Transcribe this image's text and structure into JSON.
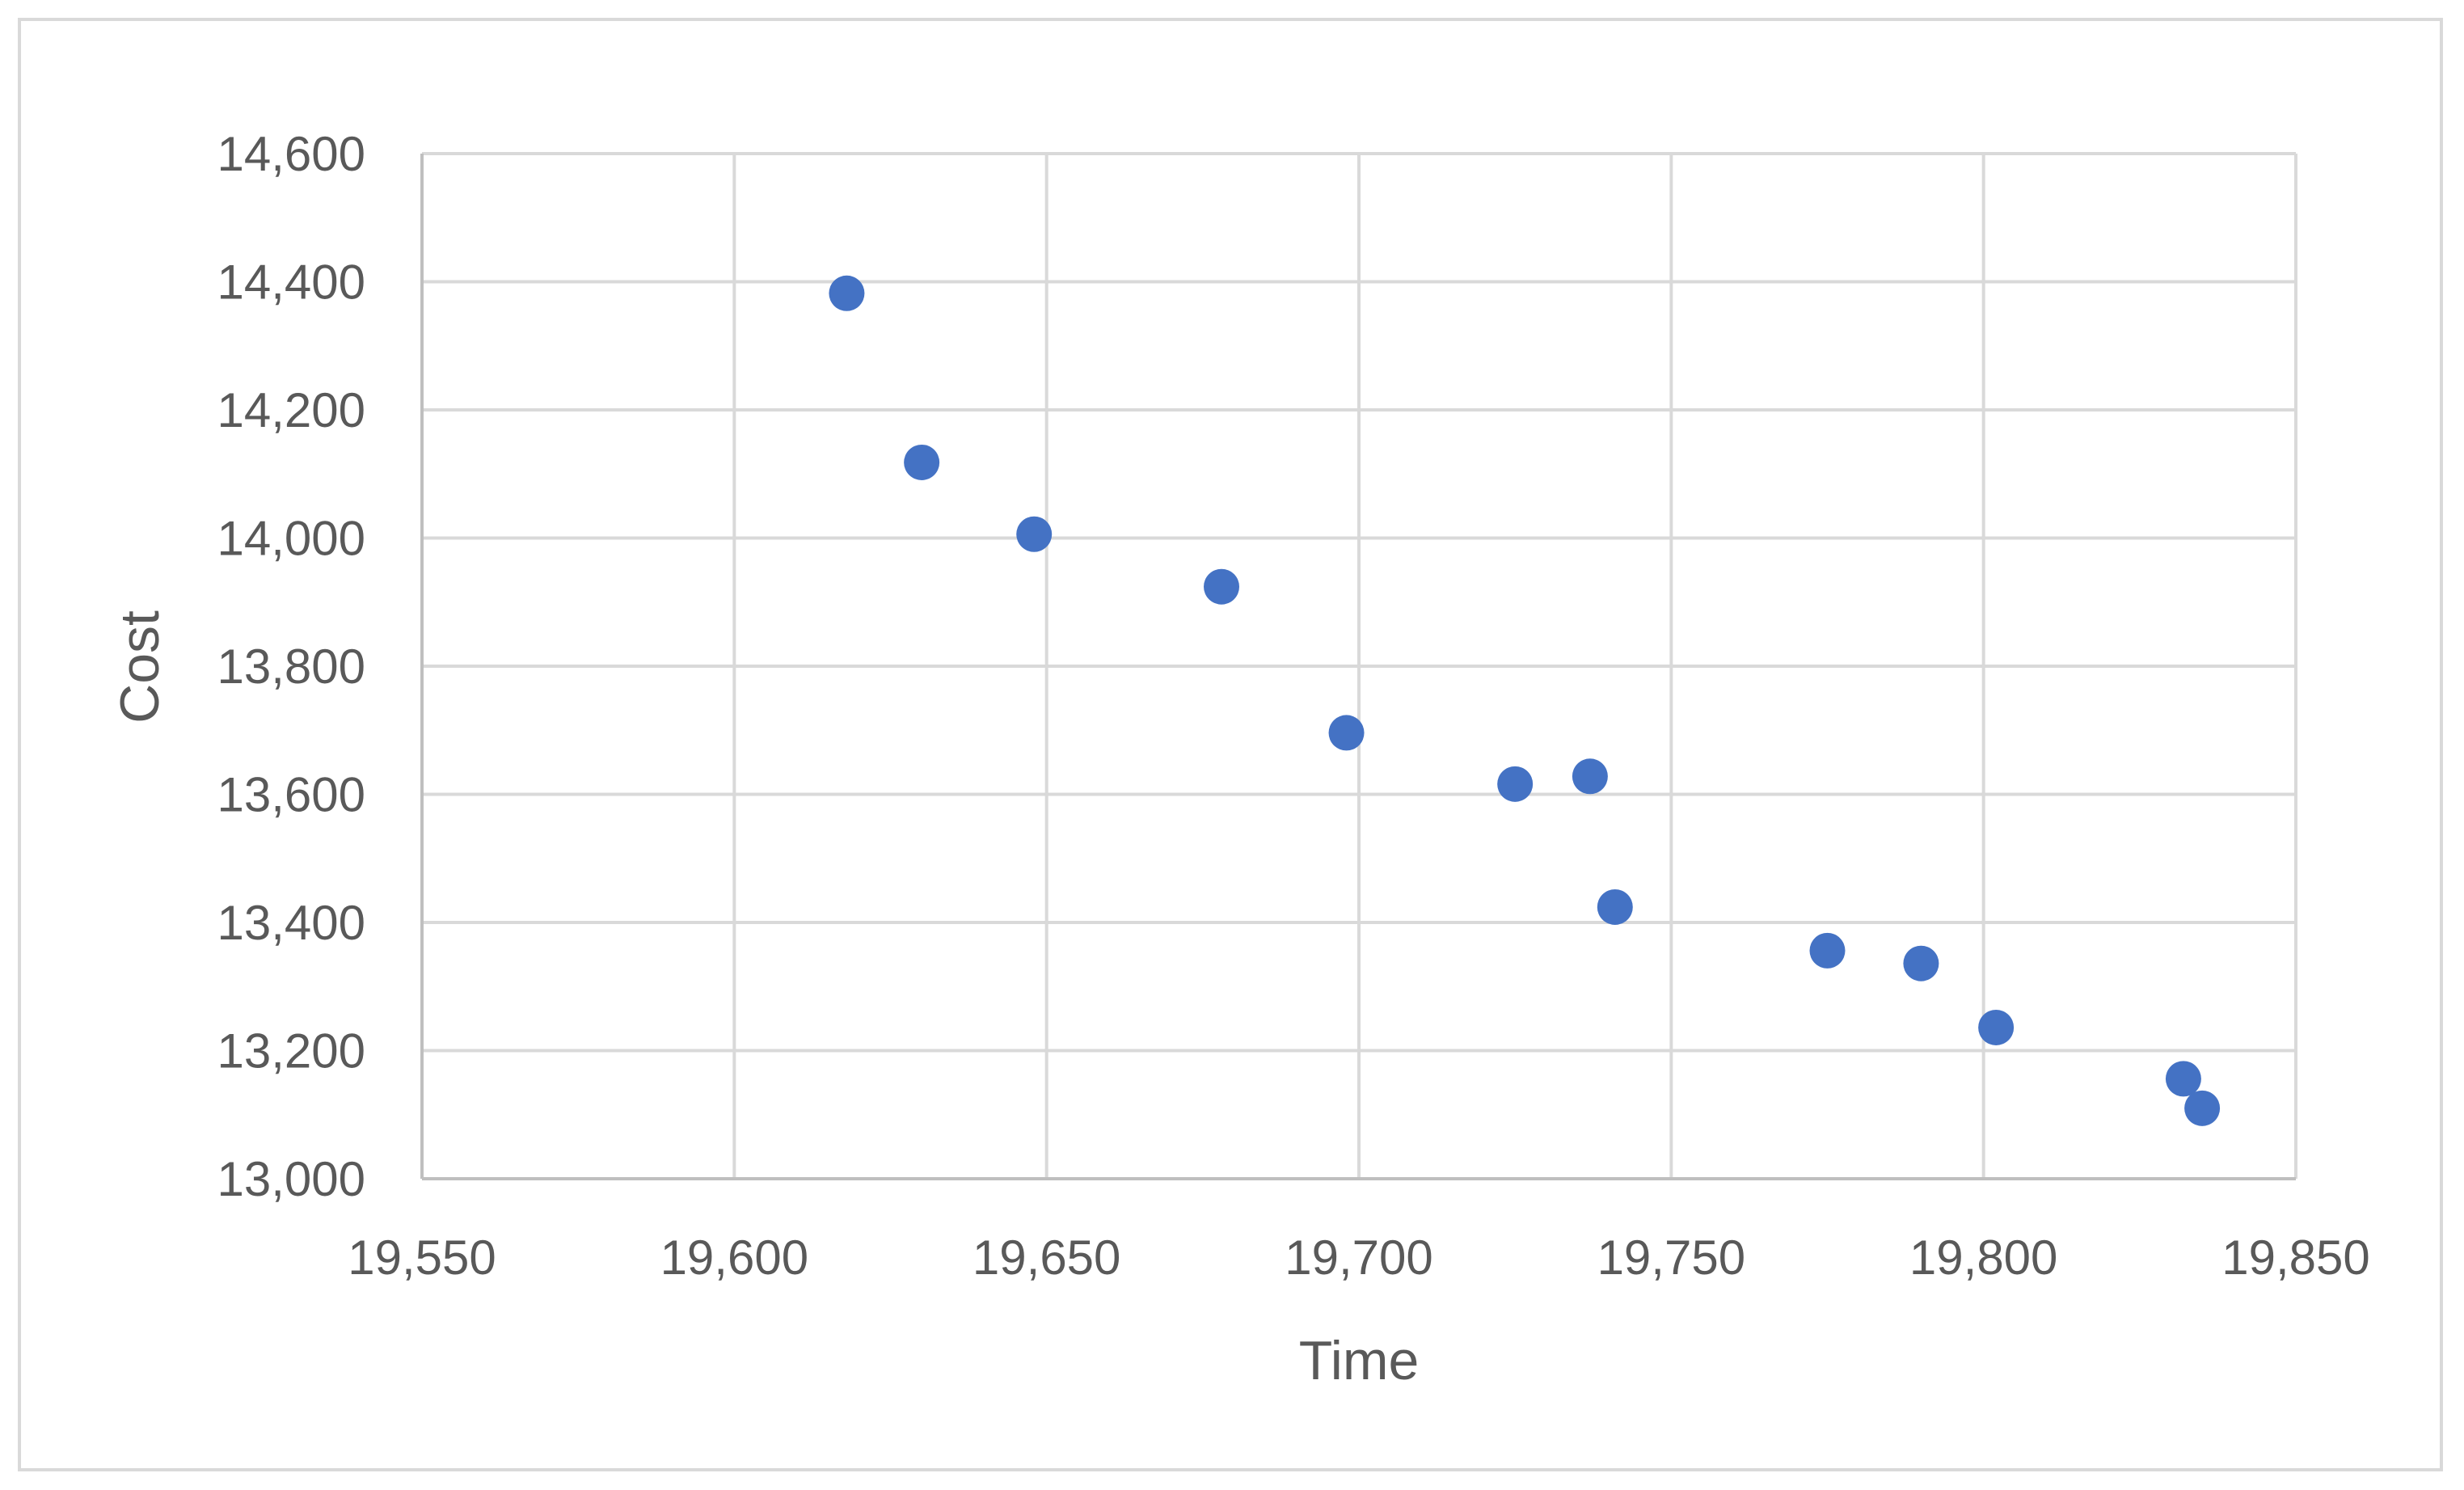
{
  "chart_data": {
    "type": "scatter",
    "xlabel": "Time",
    "ylabel": "Cost",
    "xlim": [
      19550,
      19850
    ],
    "ylim": [
      13000,
      14600
    ],
    "x_ticks": [
      19550,
      19600,
      19650,
      19700,
      19750,
      19800,
      19850
    ],
    "y_ticks": [
      13000,
      13200,
      13400,
      13600,
      13800,
      14000,
      14200,
      14400,
      14600
    ],
    "x_tick_labels": [
      "19,550",
      "19,600",
      "19,650",
      "19,700",
      "19,750",
      "19,800",
      "19,850"
    ],
    "y_tick_labels": [
      "13,000",
      "13,200",
      "13,400",
      "13,600",
      "13,800",
      "14,000",
      "14,200",
      "14,400",
      "14,600"
    ],
    "grid": true,
    "legend": "none",
    "series": [
      {
        "color": "#4472c4",
        "points": [
          {
            "x": 19618,
            "y": 14382
          },
          {
            "x": 19630,
            "y": 14118
          },
          {
            "x": 19648,
            "y": 14006
          },
          {
            "x": 19678,
            "y": 13924
          },
          {
            "x": 19698,
            "y": 13696
          },
          {
            "x": 19725,
            "y": 13616
          },
          {
            "x": 19737,
            "y": 13628
          },
          {
            "x": 19741,
            "y": 13424
          },
          {
            "x": 19775,
            "y": 13356
          },
          {
            "x": 19790,
            "y": 13336
          },
          {
            "x": 19802,
            "y": 13236
          },
          {
            "x": 19832,
            "y": 13156
          },
          {
            "x": 19835,
            "y": 13110
          }
        ]
      }
    ]
  }
}
